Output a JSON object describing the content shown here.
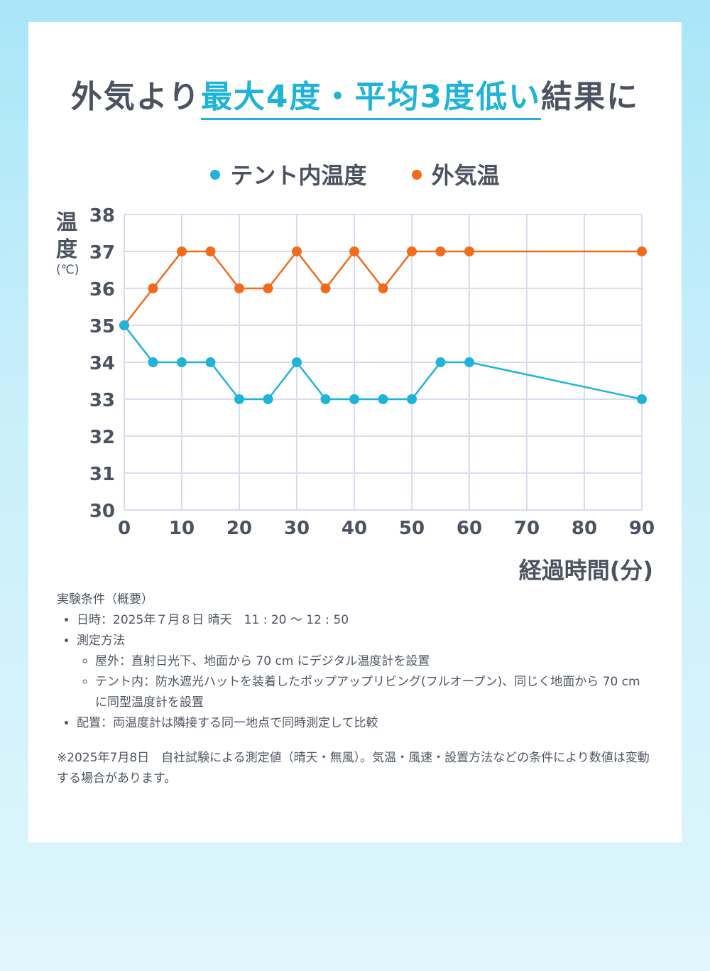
{
  "headline": {
    "prefix": "外気より",
    "highlight": "最大4度・平均3度低い",
    "suffix": "結果に"
  },
  "colors": {
    "tent": "#1fb3d8",
    "outside": "#f26b1d",
    "text": "#4b5260",
    "grid": "#d8dcef"
  },
  "legend": [
    {
      "label": "テント内温度",
      "color": "#1fb3d8"
    },
    {
      "label": "外気温",
      "color": "#f26b1d"
    }
  ],
  "chart_data": {
    "type": "line",
    "ylabel_chars": [
      "温",
      "度"
    ],
    "ylabel_unit": "(℃)",
    "xlabel": "経過時間(分)",
    "ylim": [
      30,
      38
    ],
    "y_ticks": [
      30,
      31,
      32,
      33,
      34,
      35,
      36,
      37,
      38
    ],
    "xlim": [
      0,
      90
    ],
    "x_ticks": [
      0,
      10,
      20,
      30,
      40,
      50,
      60,
      70,
      80,
      90
    ],
    "x": [
      0,
      5,
      10,
      15,
      20,
      25,
      30,
      35,
      40,
      45,
      50,
      55,
      60,
      90
    ],
    "series": [
      {
        "name": "外気温",
        "color": "#f26b1d",
        "values": [
          35,
          36,
          37,
          37,
          36,
          36,
          37,
          36,
          37,
          36,
          37,
          37,
          37,
          37
        ]
      },
      {
        "name": "テント内温度",
        "color": "#1fb3d8",
        "values": [
          35,
          34,
          34,
          34,
          33,
          33,
          34,
          33,
          33,
          33,
          33,
          34,
          34,
          33
        ]
      }
    ],
    "grid": true
  },
  "notes": {
    "heading": "実験条件（概要）",
    "datetime": "日時：2025年７月８日 晴天　11 : 20 〜 12 : 50",
    "method": "測定方法",
    "outdoor": "屋外：直射日光下、地面から 70 cm にデジタル温度計を設置",
    "tent": "テント内：防水遮光ハットを装着したポップアップリビング(フルオープン)、同じく地面から 70 cm に同型温度計を設置",
    "placement": "配置：両温度計は隣接する同一地点で同時測定して比較",
    "footnote": "※2025年7月8日　自社試験による測定値（晴天・無風）。気温・風速・設置方法などの条件により数値は変動する場合があります。"
  }
}
